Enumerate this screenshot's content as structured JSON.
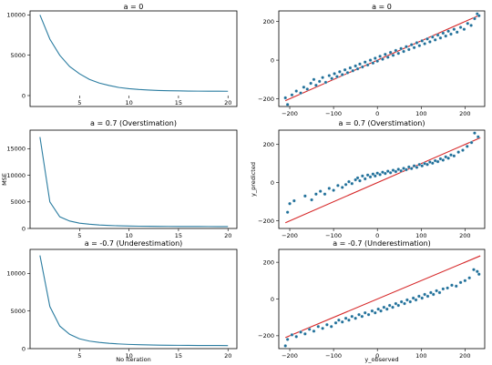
{
  "figure": {
    "ylabel_mse": "MSE",
    "ylabel_pred": "y_predicted",
    "xlabel_iter": "No Iteration",
    "xlabel_obs": "y_observed"
  },
  "colors": {
    "series": "#2a7ca0",
    "marker": "#1f6f99",
    "identity_line": "#d62728",
    "axes": "#000000"
  },
  "chart_data": [
    {
      "id": "mse-a0",
      "type": "line",
      "title": "a = 0",
      "xlabel": "",
      "ylabel": "",
      "xlim": [
        0,
        20.9
      ],
      "ylim": [
        0,
        10500
      ],
      "xticks": [
        5,
        10,
        15,
        20
      ],
      "yticks": [
        0,
        5000,
        10000
      ],
      "x": [
        1,
        2,
        3,
        4,
        5,
        6,
        7,
        8,
        9,
        10,
        11,
        12,
        13,
        14,
        15,
        16,
        17,
        18,
        19,
        20
      ],
      "y": [
        10000,
        7000,
        5000,
        3600,
        2700,
        2000,
        1550,
        1250,
        1000,
        850,
        750,
        680,
        630,
        600,
        580,
        560,
        550,
        545,
        540,
        535
      ]
    },
    {
      "id": "pred-a0",
      "type": "scatter",
      "title": "a = 0",
      "xlabel": "",
      "ylabel": "",
      "xlim": [
        -225,
        245
      ],
      "ylim": [
        -240,
        255
      ],
      "xticks": [
        -200,
        -100,
        0,
        100,
        200
      ],
      "yticks": [
        -200,
        0,
        200
      ],
      "identity_line": [
        [
          -210,
          -210
        ],
        [
          235,
          235
        ]
      ],
      "points": [
        [
          -210,
          -195
        ],
        [
          -205,
          -230
        ],
        [
          -195,
          -180
        ],
        [
          -185,
          -160
        ],
        [
          -175,
          -170
        ],
        [
          -168,
          -140
        ],
        [
          -160,
          -150
        ],
        [
          -152,
          -120
        ],
        [
          -145,
          -100
        ],
        [
          -140,
          -130
        ],
        [
          -132,
          -110
        ],
        [
          -125,
          -90
        ],
        [
          -118,
          -115
        ],
        [
          -110,
          -80
        ],
        [
          -104,
          -95
        ],
        [
          -98,
          -70
        ],
        [
          -92,
          -85
        ],
        [
          -86,
          -60
        ],
        [
          -80,
          -75
        ],
        [
          -74,
          -50
        ],
        [
          -68,
          -65
        ],
        [
          -62,
          -40
        ],
        [
          -56,
          -55
        ],
        [
          -50,
          -30
        ],
        [
          -45,
          -45
        ],
        [
          -40,
          -20
        ],
        [
          -34,
          -35
        ],
        [
          -28,
          -10
        ],
        [
          -22,
          -25
        ],
        [
          -16,
          0
        ],
        [
          -10,
          -15
        ],
        [
          -5,
          10
        ],
        [
          0,
          -5
        ],
        [
          6,
          20
        ],
        [
          12,
          5
        ],
        [
          18,
          30
        ],
        [
          24,
          15
        ],
        [
          30,
          40
        ],
        [
          36,
          25
        ],
        [
          42,
          50
        ],
        [
          48,
          35
        ],
        [
          54,
          60
        ],
        [
          60,
          45
        ],
        [
          66,
          70
        ],
        [
          72,
          55
        ],
        [
          78,
          80
        ],
        [
          84,
          65
        ],
        [
          90,
          90
        ],
        [
          96,
          75
        ],
        [
          102,
          100
        ],
        [
          108,
          85
        ],
        [
          114,
          110
        ],
        [
          120,
          95
        ],
        [
          126,
          120
        ],
        [
          132,
          105
        ],
        [
          138,
          130
        ],
        [
          144,
          115
        ],
        [
          150,
          140
        ],
        [
          156,
          125
        ],
        [
          162,
          150
        ],
        [
          168,
          135
        ],
        [
          175,
          160
        ],
        [
          182,
          145
        ],
        [
          190,
          170
        ],
        [
          198,
          160
        ],
        [
          206,
          190
        ],
        [
          214,
          180
        ],
        [
          222,
          215
        ],
        [
          228,
          240
        ],
        [
          232,
          230
        ]
      ]
    },
    {
      "id": "mse-a07",
      "type": "line",
      "title": "a = 0.7 (Overstimation)",
      "xlabel": "",
      "ylabel": "MSE",
      "xlim": [
        0,
        20.9
      ],
      "ylim": [
        0,
        18500
      ],
      "xticks": [
        5,
        10,
        15,
        20
      ],
      "yticks": [
        0,
        5000,
        10000,
        15000
      ],
      "x": [
        1,
        2,
        3,
        4,
        5,
        6,
        7,
        8,
        9,
        10,
        11,
        12,
        13,
        14,
        15,
        16,
        17,
        18,
        19,
        20
      ],
      "y": [
        17200,
        5000,
        2200,
        1400,
        1000,
        800,
        650,
        560,
        500,
        460,
        430,
        410,
        395,
        385,
        378,
        372,
        368,
        365,
        362,
        360
      ]
    },
    {
      "id": "pred-a07",
      "type": "scatter",
      "title": "a = 0.7 (Overstimation)",
      "xlabel": "",
      "ylabel": "y_predicted",
      "xlim": [
        -225,
        245
      ],
      "ylim": [
        -240,
        275
      ],
      "xticks": [
        -200,
        -100,
        0,
        100,
        200
      ],
      "yticks": [
        -200,
        0,
        200
      ],
      "identity_line": [
        [
          -210,
          -210
        ],
        [
          235,
          235
        ]
      ],
      "points": [
        [
          -205,
          -155
        ],
        [
          -200,
          -110
        ],
        [
          -190,
          -95
        ],
        [
          -165,
          -70
        ],
        [
          -150,
          -90
        ],
        [
          -140,
          -60
        ],
        [
          -130,
          -45
        ],
        [
          -120,
          -60
        ],
        [
          -110,
          -30
        ],
        [
          -100,
          -40
        ],
        [
          -90,
          -15
        ],
        [
          -80,
          -25
        ],
        [
          -72,
          -10
        ],
        [
          -65,
          5
        ],
        [
          -58,
          -5
        ],
        [
          -50,
          15
        ],
        [
          -45,
          25
        ],
        [
          -40,
          10
        ],
        [
          -34,
          35
        ],
        [
          -28,
          20
        ],
        [
          -22,
          40
        ],
        [
          -16,
          30
        ],
        [
          -10,
          45
        ],
        [
          -5,
          35
        ],
        [
          0,
          50
        ],
        [
          6,
          42
        ],
        [
          12,
          55
        ],
        [
          18,
          48
        ],
        [
          24,
          60
        ],
        [
          30,
          52
        ],
        [
          36,
          65
        ],
        [
          42,
          58
        ],
        [
          48,
          70
        ],
        [
          54,
          62
        ],
        [
          60,
          75
        ],
        [
          66,
          68
        ],
        [
          72,
          82
        ],
        [
          78,
          74
        ],
        [
          84,
          88
        ],
        [
          90,
          80
        ],
        [
          96,
          95
        ],
        [
          102,
          88
        ],
        [
          108,
          100
        ],
        [
          114,
          95
        ],
        [
          120,
          108
        ],
        [
          126,
          102
        ],
        [
          132,
          115
        ],
        [
          138,
          110
        ],
        [
          144,
          125
        ],
        [
          150,
          118
        ],
        [
          156,
          135
        ],
        [
          162,
          128
        ],
        [
          168,
          145
        ],
        [
          175,
          140
        ],
        [
          185,
          160
        ],
        [
          195,
          170
        ],
        [
          205,
          190
        ],
        [
          215,
          210
        ],
        [
          222,
          260
        ],
        [
          230,
          240
        ]
      ]
    },
    {
      "id": "mse-am07",
      "type": "line",
      "title": "a = -0.7 (Underestimation)",
      "xlabel": "No Iteration",
      "ylabel": "",
      "xlim": [
        0,
        20.9
      ],
      "ylim": [
        0,
        13200
      ],
      "xticks": [
        5,
        10,
        15,
        20
      ],
      "yticks": [
        0,
        5000,
        10000
      ],
      "x": [
        1,
        2,
        3,
        4,
        5,
        6,
        7,
        8,
        9,
        10,
        11,
        12,
        13,
        14,
        15,
        16,
        17,
        18,
        19,
        20
      ],
      "y": [
        12400,
        5600,
        3000,
        1900,
        1300,
        1000,
        820,
        700,
        620,
        560,
        520,
        490,
        465,
        450,
        440,
        430,
        422,
        416,
        410,
        405
      ]
    },
    {
      "id": "pred-am07",
      "type": "scatter",
      "title": "a = -0.7 (Underestimation)",
      "xlabel": "y_observed",
      "ylabel": "",
      "xlim": [
        -225,
        245
      ],
      "ylim": [
        -270,
        270
      ],
      "xticks": [
        -200,
        -100,
        0,
        100,
        200
      ],
      "yticks": [
        -200,
        0,
        200
      ],
      "identity_line": [
        [
          -210,
          -210
        ],
        [
          235,
          235
        ]
      ],
      "points": [
        [
          -210,
          -255
        ],
        [
          -205,
          -220
        ],
        [
          -195,
          -195
        ],
        [
          -185,
          -205
        ],
        [
          -175,
          -180
        ],
        [
          -165,
          -190
        ],
        [
          -155,
          -165
        ],
        [
          -145,
          -175
        ],
        [
          -135,
          -150
        ],
        [
          -125,
          -160
        ],
        [
          -115,
          -140
        ],
        [
          -105,
          -150
        ],
        [
          -95,
          -130
        ],
        [
          -88,
          -115
        ],
        [
          -80,
          -125
        ],
        [
          -72,
          -105
        ],
        [
          -65,
          -115
        ],
        [
          -58,
          -95
        ],
        [
          -50,
          -105
        ],
        [
          -42,
          -85
        ],
        [
          -35,
          -95
        ],
        [
          -28,
          -75
        ],
        [
          -20,
          -85
        ],
        [
          -12,
          -65
        ],
        [
          -5,
          -75
        ],
        [
          2,
          -55
        ],
        [
          8,
          -65
        ],
        [
          15,
          -45
        ],
        [
          22,
          -55
        ],
        [
          28,
          -35
        ],
        [
          35,
          -45
        ],
        [
          42,
          -25
        ],
        [
          48,
          -35
        ],
        [
          55,
          -15
        ],
        [
          62,
          -25
        ],
        [
          68,
          -5
        ],
        [
          75,
          -15
        ],
        [
          82,
          5
        ],
        [
          88,
          -5
        ],
        [
          95,
          15
        ],
        [
          102,
          5
        ],
        [
          108,
          25
        ],
        [
          115,
          15
        ],
        [
          122,
          35
        ],
        [
          128,
          25
        ],
        [
          135,
          45
        ],
        [
          142,
          35
        ],
        [
          150,
          55
        ],
        [
          160,
          60
        ],
        [
          170,
          75
        ],
        [
          180,
          70
        ],
        [
          190,
          90
        ],
        [
          200,
          100
        ],
        [
          210,
          115
        ],
        [
          220,
          160
        ],
        [
          228,
          150
        ],
        [
          232,
          135
        ]
      ]
    }
  ]
}
